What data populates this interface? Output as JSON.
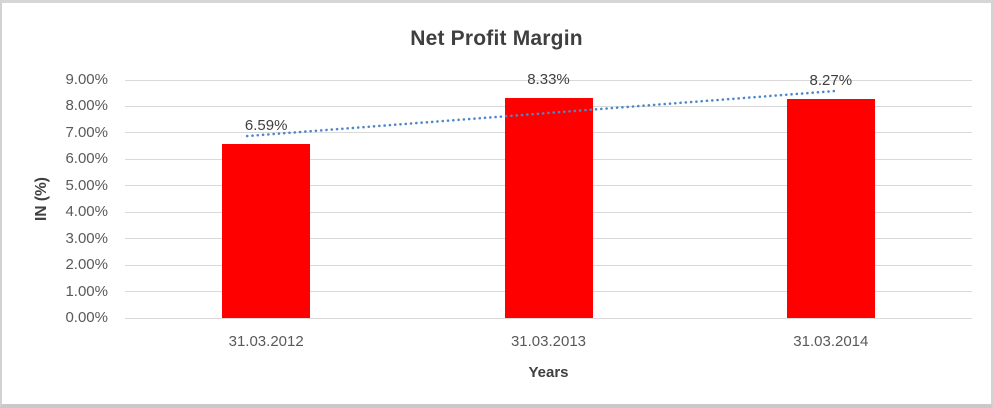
{
  "chart_data": {
    "type": "bar",
    "title": "Net Profit Margin",
    "xlabel": "Years",
    "ylabel": "IN (%)",
    "categories": [
      "31.03.2012",
      "31.03.2013",
      "31.03.2014"
    ],
    "values": [
      6.59,
      8.33,
      8.27
    ],
    "data_labels": [
      "6.59%",
      "8.33%",
      "8.27%"
    ],
    "y_ticks": [
      "0.00%",
      "1.00%",
      "2.00%",
      "3.00%",
      "4.00%",
      "5.00%",
      "6.00%",
      "7.00%",
      "8.00%",
      "9.00%"
    ],
    "ylim": [
      0,
      9
    ],
    "grid": true,
    "legend": "none",
    "bar_color": "#ff0000",
    "gridline_color": "#d9d9d9",
    "trendline": {
      "type": "linear",
      "style": "dotted",
      "color": "#4c87c8",
      "start_value": 6.88,
      "end_value": 8.58
    },
    "colors": {
      "title_text": "#3f3f3f",
      "tick_text": "#595959",
      "data_label_text": "#404040",
      "axis_title_text": "#3f3f3f",
      "frame_border": "#cccccc",
      "background": "#ffffff"
    }
  }
}
